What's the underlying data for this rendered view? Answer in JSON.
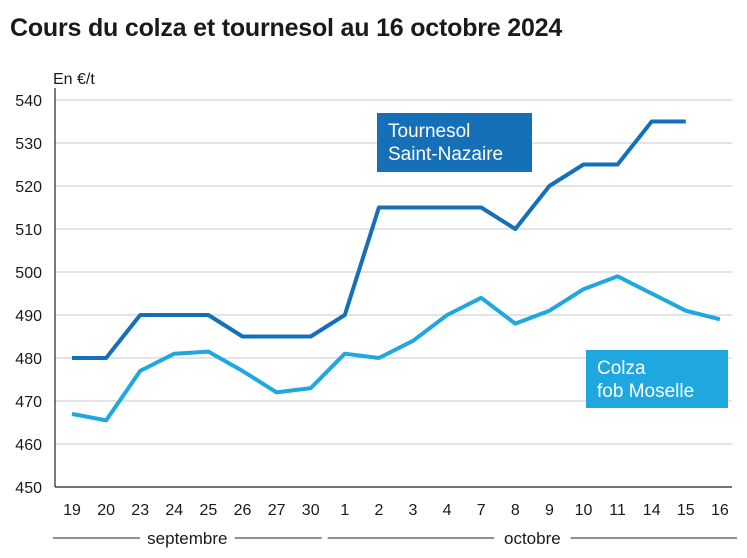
{
  "title": "Cours du colza et tournesol au 16 octobre 2024",
  "chart_data": {
    "type": "line",
    "title": "Cours du colza et tournesol au 16 octobre 2024",
    "ylabel": "En €/t",
    "xlabel": "",
    "ylim": [
      450,
      540
    ],
    "yticks": [
      450,
      460,
      470,
      480,
      490,
      500,
      510,
      520,
      530,
      540
    ],
    "grid": true,
    "categories": [
      "19",
      "20",
      "23",
      "24",
      "25",
      "26",
      "27",
      "30",
      "1",
      "2",
      "3",
      "4",
      "7",
      "8",
      "9",
      "10",
      "11",
      "14",
      "15",
      "16"
    ],
    "months": [
      {
        "label": "septembre",
        "from": 0,
        "to": 7
      },
      {
        "label": "octobre",
        "from": 8,
        "to": 19
      }
    ],
    "series": [
      {
        "name": "Tournesol Saint-Nazaire",
        "label_lines": [
          "Tournesol",
          "Saint-Nazaire"
        ],
        "color": "#1570b8",
        "values": [
          480,
          480,
          490,
          490,
          490,
          485,
          485,
          485,
          490,
          515,
          515,
          515,
          515,
          510,
          520,
          525,
          525,
          535,
          535,
          null
        ]
      },
      {
        "name": "Colza fob Moselle",
        "label_lines": [
          "Colza",
          "fob Moselle"
        ],
        "color": "#1fa7e0",
        "values": [
          467,
          465.5,
          477,
          481,
          481.5,
          477,
          472,
          473,
          481,
          480,
          484,
          490,
          494,
          488,
          491,
          496,
          499,
          495,
          491,
          489
        ]
      }
    ]
  }
}
